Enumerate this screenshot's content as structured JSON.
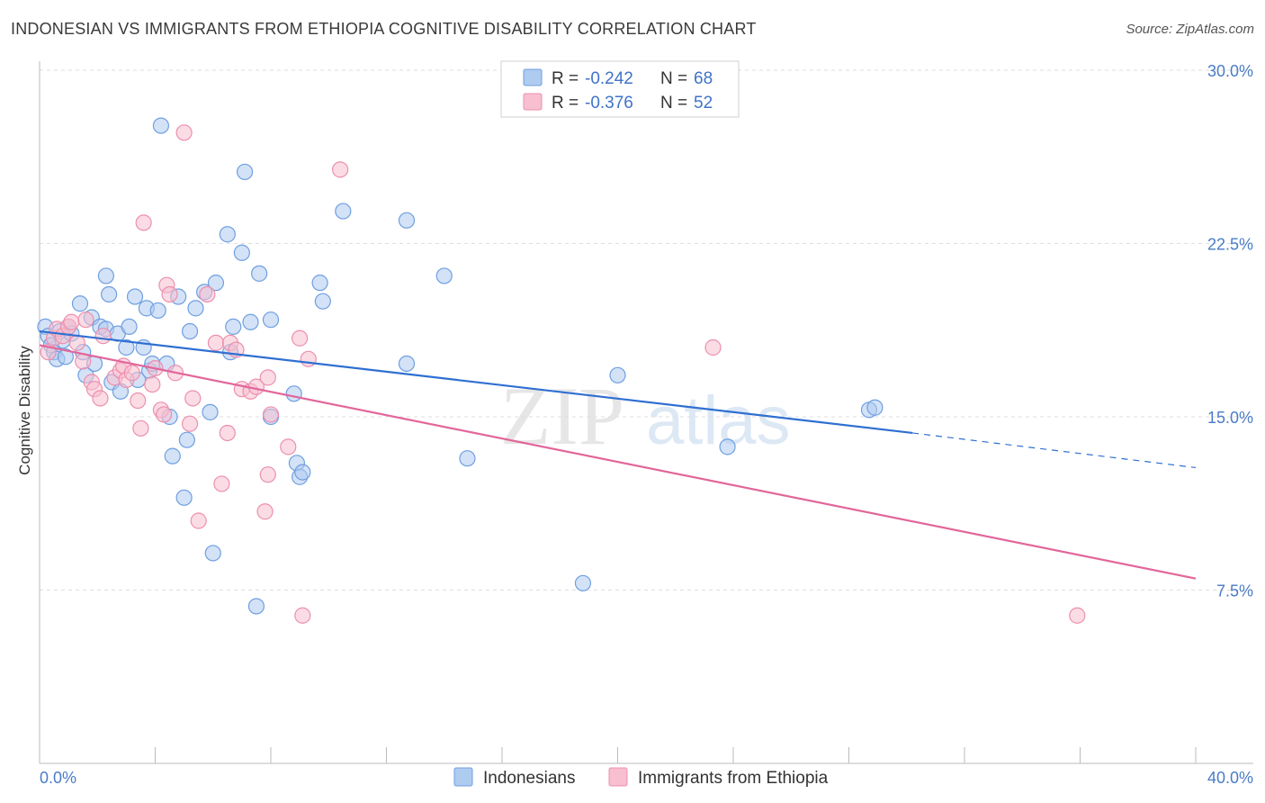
{
  "title": "INDONESIAN VS IMMIGRANTS FROM ETHIOPIA COGNITIVE DISABILITY CORRELATION CHART",
  "source": "Source: ZipAtlas.com",
  "watermark": {
    "zip": "ZIP",
    "atlas": "atlas"
  },
  "legend": {
    "rows": [
      {
        "r_label": "R =",
        "r_value": "-0.242",
        "n_label": "N =",
        "n_value": "68",
        "color": "#aecbf0",
        "stroke": "#6f9fe0"
      },
      {
        "r_label": "R =",
        "r_value": "-0.376",
        "n_label": "N =",
        "n_value": "52",
        "color": "#f7bfd0",
        "stroke": "#ec8fae"
      }
    ]
  },
  "bottom_legend": [
    {
      "label": "Indonesians",
      "color": "#aecbf0",
      "stroke": "#6f9fe0"
    },
    {
      "label": "Immigrants from Ethiopia",
      "color": "#f7bfd0",
      "stroke": "#ec8fae"
    }
  ],
  "chart_data": {
    "type": "scatter",
    "ylabel": "Cognitive Disability",
    "xlabel": "",
    "xlim": [
      0,
      40
    ],
    "ylim": [
      0,
      31.5
    ],
    "x_tick_labels": {
      "min": "0.0%",
      "max": "40.0%"
    },
    "y_ticks": [
      {
        "value": 7.5,
        "label": "7.5%"
      },
      {
        "value": 15.0,
        "label": "15.0%"
      },
      {
        "value": 22.5,
        "label": "22.5%"
      },
      {
        "value": 30.0,
        "label": "30.0%"
      }
    ],
    "x_minor_ticks": [
      4,
      8,
      12,
      16,
      20,
      24,
      28,
      32,
      36,
      40
    ],
    "grid": true,
    "legend_position": "top-center",
    "series": [
      {
        "name": "Indonesians",
        "color": "#6f9fe0",
        "fill": "#aecbf0",
        "line_color": "#2f6fd1",
        "trend": {
          "x0": 0,
          "y0": 18.7,
          "x1": 30.2,
          "y1": 14.3,
          "dash_x1": 40,
          "dash_y1": 12.8
        },
        "points": [
          [
            0.2,
            18.9
          ],
          [
            0.3,
            18.5
          ],
          [
            0.4,
            18.1
          ],
          [
            0.5,
            17.8
          ],
          [
            0.6,
            17.5
          ],
          [
            0.7,
            18.7
          ],
          [
            0.8,
            18.3
          ],
          [
            0.9,
            17.6
          ],
          [
            1.0,
            18.9
          ],
          [
            1.1,
            18.6
          ],
          [
            1.4,
            19.9
          ],
          [
            1.5,
            17.8
          ],
          [
            1.6,
            16.8
          ],
          [
            1.8,
            19.3
          ],
          [
            1.9,
            17.3
          ],
          [
            2.1,
            18.9
          ],
          [
            2.3,
            18.8
          ],
          [
            2.3,
            21.1
          ],
          [
            2.4,
            20.3
          ],
          [
            2.5,
            16.5
          ],
          [
            2.7,
            18.6
          ],
          [
            2.8,
            16.1
          ],
          [
            3.0,
            18.0
          ],
          [
            3.1,
            18.9
          ],
          [
            3.3,
            20.2
          ],
          [
            3.4,
            16.6
          ],
          [
            3.6,
            18.0
          ],
          [
            3.7,
            19.7
          ],
          [
            3.8,
            17.0
          ],
          [
            3.9,
            17.3
          ],
          [
            4.1,
            19.6
          ],
          [
            4.2,
            27.6
          ],
          [
            4.4,
            17.3
          ],
          [
            4.5,
            15.0
          ],
          [
            4.6,
            13.3
          ],
          [
            4.8,
            20.2
          ],
          [
            5.0,
            11.5
          ],
          [
            5.1,
            14.0
          ],
          [
            5.2,
            18.7
          ],
          [
            5.4,
            19.7
          ],
          [
            5.7,
            20.4
          ],
          [
            5.9,
            15.2
          ],
          [
            6.0,
            9.1
          ],
          [
            6.1,
            20.8
          ],
          [
            6.5,
            22.9
          ],
          [
            6.6,
            17.8
          ],
          [
            6.7,
            18.9
          ],
          [
            7.0,
            22.1
          ],
          [
            7.1,
            25.6
          ],
          [
            7.3,
            19.1
          ],
          [
            7.5,
            6.8
          ],
          [
            7.6,
            21.2
          ],
          [
            8.0,
            19.2
          ],
          [
            8.0,
            15.0
          ],
          [
            8.8,
            16.0
          ],
          [
            8.9,
            13.0
          ],
          [
            9.0,
            12.4
          ],
          [
            9.1,
            12.6
          ],
          [
            9.7,
            20.8
          ],
          [
            9.8,
            20.0
          ],
          [
            10.5,
            23.9
          ],
          [
            12.7,
            17.3
          ],
          [
            12.7,
            23.5
          ],
          [
            14.0,
            21.1
          ],
          [
            14.8,
            13.2
          ],
          [
            18.8,
            7.8
          ],
          [
            20.0,
            16.8
          ],
          [
            23.8,
            13.7
          ],
          [
            28.7,
            15.3
          ],
          [
            28.9,
            15.4
          ]
        ]
      },
      {
        "name": "Immigrants from Ethiopia",
        "color": "#ec8fae",
        "fill": "#f7bfd0",
        "line_color": "#e2669a",
        "trend": {
          "x0": 0,
          "y0": 18.1,
          "x1": 40,
          "y1": 8.0
        },
        "points": [
          [
            0.3,
            17.8
          ],
          [
            0.5,
            18.4
          ],
          [
            0.6,
            18.8
          ],
          [
            0.8,
            18.5
          ],
          [
            1.0,
            18.9
          ],
          [
            1.1,
            19.1
          ],
          [
            1.3,
            18.2
          ],
          [
            1.5,
            17.4
          ],
          [
            1.6,
            19.2
          ],
          [
            1.8,
            16.5
          ],
          [
            1.9,
            16.2
          ],
          [
            2.1,
            15.8
          ],
          [
            2.2,
            18.5
          ],
          [
            2.6,
            16.7
          ],
          [
            2.8,
            17.0
          ],
          [
            2.9,
            17.2
          ],
          [
            3.0,
            16.6
          ],
          [
            3.2,
            16.9
          ],
          [
            3.4,
            15.7
          ],
          [
            3.5,
            14.5
          ],
          [
            3.6,
            23.4
          ],
          [
            3.9,
            16.4
          ],
          [
            4.0,
            17.1
          ],
          [
            4.2,
            15.3
          ],
          [
            4.3,
            15.1
          ],
          [
            4.4,
            20.7
          ],
          [
            4.5,
            20.3
          ],
          [
            4.7,
            16.9
          ],
          [
            5.0,
            27.3
          ],
          [
            5.2,
            14.7
          ],
          [
            5.3,
            15.8
          ],
          [
            5.5,
            10.5
          ],
          [
            5.8,
            20.3
          ],
          [
            6.1,
            18.2
          ],
          [
            6.3,
            12.1
          ],
          [
            6.5,
            14.3
          ],
          [
            6.6,
            18.2
          ],
          [
            6.8,
            17.9
          ],
          [
            7.0,
            16.2
          ],
          [
            7.3,
            16.1
          ],
          [
            7.5,
            16.3
          ],
          [
            7.8,
            10.9
          ],
          [
            7.9,
            16.7
          ],
          [
            7.9,
            12.5
          ],
          [
            8.0,
            15.1
          ],
          [
            8.6,
            13.7
          ],
          [
            9.0,
            18.4
          ],
          [
            9.1,
            6.4
          ],
          [
            9.3,
            17.5
          ],
          [
            10.4,
            25.7
          ],
          [
            23.3,
            18.0
          ],
          [
            35.9,
            6.4
          ]
        ]
      }
    ]
  }
}
